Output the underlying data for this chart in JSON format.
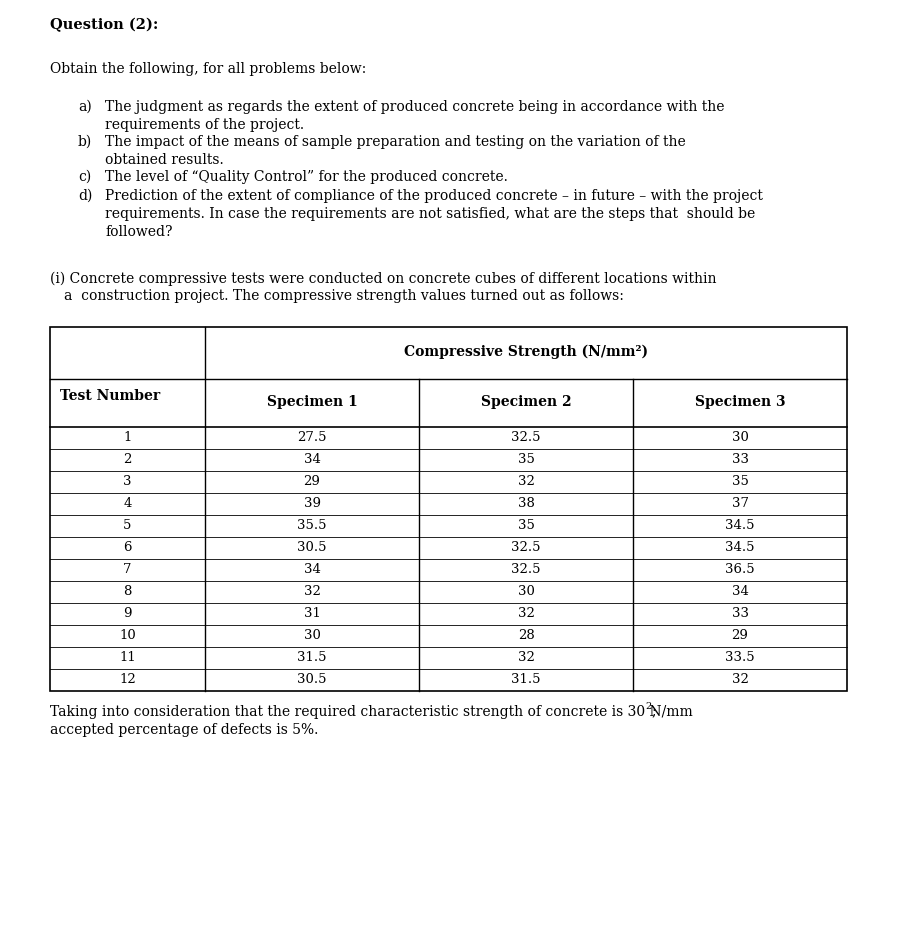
{
  "title": "Question (2):",
  "intro": "Obtain the following, for all problems below:",
  "item_a_label": "a)",
  "item_a_text": "The judgment as regards the extent of produced concrete being in accordance with the\nrequirements of the project.",
  "item_b_label": "b)",
  "item_b_text": "The impact of the means of sample preparation and testing on the variation of the\nobtained results.",
  "item_c_label": "c)",
  "item_c_text": "The level of “Quality Control” for the produced concrete.",
  "item_d_label": "d)",
  "item_d_text": "Prediction of the extent of compliance of the produced concrete – in future – with the project\nrequirements. In case the requirements are not satisfied, what are the steps that  should be\nfollowed?",
  "para_i_line1": "(i) Concrete compressive tests were conducted on concrete cubes of different locations within",
  "para_i_line2": "a  construction project. The compressive strength values turned out as follows:",
  "table_header_main": "Compressive Strength (N/mm²)",
  "table_col0_header": "Test Number",
  "table_col_headers": [
    "Specimen 1",
    "Specimen 2",
    "Specimen 3"
  ],
  "table_data": [
    [
      1,
      27.5,
      32.5,
      30
    ],
    [
      2,
      34,
      35,
      33
    ],
    [
      3,
      29,
      32,
      35
    ],
    [
      4,
      39,
      38,
      37
    ],
    [
      5,
      35.5,
      35,
      34.5
    ],
    [
      6,
      30.5,
      32.5,
      34.5
    ],
    [
      7,
      34,
      32.5,
      36.5
    ],
    [
      8,
      32,
      30,
      34
    ],
    [
      9,
      31,
      32,
      33
    ],
    [
      10,
      30,
      28,
      29
    ],
    [
      11,
      31.5,
      32,
      33.5
    ],
    [
      12,
      30.5,
      31.5,
      32
    ]
  ],
  "footer_line1": "Taking into consideration that the required characteristic strength of concrete is 30 N/mm",
  "footer_line2": "accepted percentage of defects is 5%.",
  "bg_color": "#ffffff",
  "text_color": "#000000",
  "font_size_title": 10.5,
  "font_size_body": 10.0,
  "font_size_table": 9.5
}
